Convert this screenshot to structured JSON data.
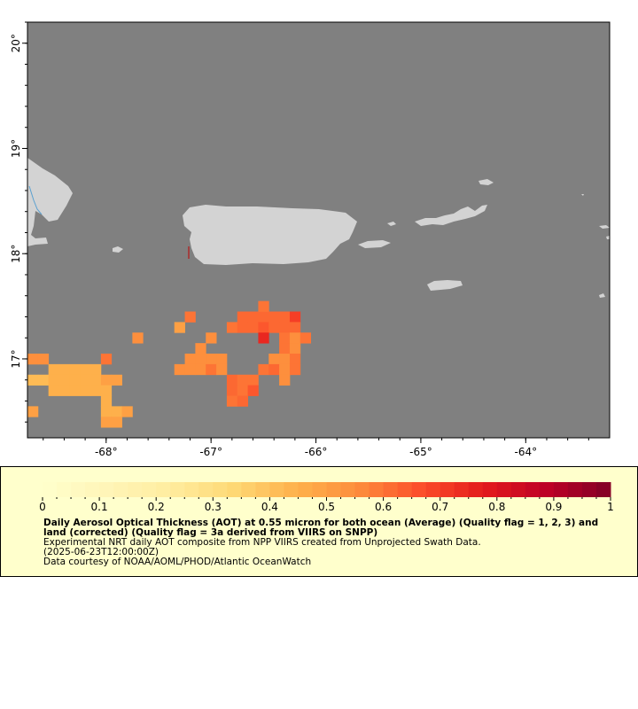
{
  "map": {
    "lon_min": -68.75,
    "lon_max": -63.2,
    "lat_min": 16.25,
    "lat_max": 20.2,
    "water_color": "#808080",
    "land_color": "#d3d3d3",
    "lon_ticks": [
      {
        "value": -68,
        "label": "-68°"
      },
      {
        "value": -67,
        "label": "-67°"
      },
      {
        "value": -66,
        "label": "-66°"
      },
      {
        "value": -65,
        "label": "-65°"
      },
      {
        "value": -64,
        "label": "-64°"
      }
    ],
    "lat_ticks": [
      {
        "value": 17,
        "label": "17°"
      },
      {
        "value": 18,
        "label": "18°"
      },
      {
        "value": 19,
        "label": "19°"
      },
      {
        "value": 20,
        "label": "20°"
      }
    ]
  },
  "chart_data": {
    "type": "heatmap",
    "cell_size_deg": 0.1,
    "variable": "AOT at 0.55 micron",
    "cells": [
      {
        "lon": -68.7,
        "lat": 17.0,
        "v": 0.55
      },
      {
        "lon": -68.6,
        "lat": 17.0,
        "v": 0.55
      },
      {
        "lon": -68.0,
        "lat": 17.0,
        "v": 0.6
      },
      {
        "lon": -68.7,
        "lat": 16.8,
        "v": 0.42
      },
      {
        "lon": -68.6,
        "lat": 16.8,
        "v": 0.42
      },
      {
        "lon": -68.5,
        "lat": 16.9,
        "v": 0.45
      },
      {
        "lon": -68.4,
        "lat": 16.9,
        "v": 0.45
      },
      {
        "lon": -68.3,
        "lat": 16.9,
        "v": 0.45
      },
      {
        "lon": -68.2,
        "lat": 16.9,
        "v": 0.45
      },
      {
        "lon": -68.1,
        "lat": 16.9,
        "v": 0.45
      },
      {
        "lon": -68.5,
        "lat": 16.8,
        "v": 0.45
      },
      {
        "lon": -68.4,
        "lat": 16.8,
        "v": 0.45
      },
      {
        "lon": -68.3,
        "lat": 16.8,
        "v": 0.45
      },
      {
        "lon": -68.2,
        "lat": 16.8,
        "v": 0.45
      },
      {
        "lon": -68.1,
        "lat": 16.8,
        "v": 0.45
      },
      {
        "lon": -68.0,
        "lat": 16.8,
        "v": 0.5
      },
      {
        "lon": -67.9,
        "lat": 16.8,
        "v": 0.5
      },
      {
        "lon": -68.5,
        "lat": 16.7,
        "v": 0.45
      },
      {
        "lon": -68.4,
        "lat": 16.7,
        "v": 0.45
      },
      {
        "lon": -68.3,
        "lat": 16.7,
        "v": 0.45
      },
      {
        "lon": -68.2,
        "lat": 16.7,
        "v": 0.45
      },
      {
        "lon": -68.1,
        "lat": 16.7,
        "v": 0.45
      },
      {
        "lon": -68.0,
        "lat": 16.7,
        "v": 0.45
      },
      {
        "lon": -68.0,
        "lat": 16.6,
        "v": 0.45
      },
      {
        "lon": -68.7,
        "lat": 16.5,
        "v": 0.5
      },
      {
        "lon": -68.0,
        "lat": 16.5,
        "v": 0.45
      },
      {
        "lon": -67.9,
        "lat": 16.5,
        "v": 0.45
      },
      {
        "lon": -67.8,
        "lat": 16.5,
        "v": 0.5
      },
      {
        "lon": -68.0,
        "lat": 16.4,
        "v": 0.5
      },
      {
        "lon": -67.9,
        "lat": 16.4,
        "v": 0.5
      },
      {
        "lon": -67.7,
        "lat": 17.2,
        "v": 0.55
      },
      {
        "lon": -67.3,
        "lat": 17.3,
        "v": 0.5
      },
      {
        "lon": -67.2,
        "lat": 17.4,
        "v": 0.6
      },
      {
        "lon": -67.0,
        "lat": 17.2,
        "v": 0.55
      },
      {
        "lon": -67.1,
        "lat": 17.1,
        "v": 0.55
      },
      {
        "lon": -67.3,
        "lat": 16.9,
        "v": 0.55
      },
      {
        "lon": -67.2,
        "lat": 17.0,
        "v": 0.55
      },
      {
        "lon": -67.1,
        "lat": 17.0,
        "v": 0.55
      },
      {
        "lon": -67.0,
        "lat": 17.0,
        "v": 0.55
      },
      {
        "lon": -66.9,
        "lat": 17.0,
        "v": 0.55
      },
      {
        "lon": -67.2,
        "lat": 16.9,
        "v": 0.55
      },
      {
        "lon": -67.1,
        "lat": 16.9,
        "v": 0.55
      },
      {
        "lon": -67.0,
        "lat": 16.9,
        "v": 0.6
      },
      {
        "lon": -66.9,
        "lat": 16.9,
        "v": 0.55
      },
      {
        "lon": -66.8,
        "lat": 17.3,
        "v": 0.6
      },
      {
        "lon": -66.7,
        "lat": 17.4,
        "v": 0.62
      },
      {
        "lon": -66.6,
        "lat": 17.4,
        "v": 0.62
      },
      {
        "lon": -66.5,
        "lat": 17.4,
        "v": 0.62
      },
      {
        "lon": -66.4,
        "lat": 17.4,
        "v": 0.62
      },
      {
        "lon": -66.3,
        "lat": 17.4,
        "v": 0.62
      },
      {
        "lon": -66.2,
        "lat": 17.4,
        "v": 0.7
      },
      {
        "lon": -66.5,
        "lat": 17.5,
        "v": 0.6
      },
      {
        "lon": -66.7,
        "lat": 17.3,
        "v": 0.62
      },
      {
        "lon": -66.6,
        "lat": 17.3,
        "v": 0.62
      },
      {
        "lon": -66.5,
        "lat": 17.3,
        "v": 0.65
      },
      {
        "lon": -66.4,
        "lat": 17.3,
        "v": 0.62
      },
      {
        "lon": -66.3,
        "lat": 17.3,
        "v": 0.62
      },
      {
        "lon": -66.2,
        "lat": 17.3,
        "v": 0.62
      },
      {
        "lon": -66.5,
        "lat": 17.2,
        "v": 0.75
      },
      {
        "lon": -66.3,
        "lat": 17.2,
        "v": 0.6
      },
      {
        "lon": -66.2,
        "lat": 17.2,
        "v": 0.55
      },
      {
        "lon": -66.1,
        "lat": 17.2,
        "v": 0.6
      },
      {
        "lon": -66.3,
        "lat": 17.1,
        "v": 0.6
      },
      {
        "lon": -66.2,
        "lat": 17.1,
        "v": 0.55
      },
      {
        "lon": -66.4,
        "lat": 17.0,
        "v": 0.55
      },
      {
        "lon": -66.3,
        "lat": 17.0,
        "v": 0.55
      },
      {
        "lon": -66.2,
        "lat": 17.0,
        "v": 0.6
      },
      {
        "lon": -66.5,
        "lat": 16.9,
        "v": 0.6
      },
      {
        "lon": -66.4,
        "lat": 16.9,
        "v": 0.62
      },
      {
        "lon": -66.3,
        "lat": 16.9,
        "v": 0.55
      },
      {
        "lon": -66.2,
        "lat": 16.9,
        "v": 0.6
      },
      {
        "lon": -66.3,
        "lat": 16.8,
        "v": 0.55
      },
      {
        "lon": -66.8,
        "lat": 16.8,
        "v": 0.62
      },
      {
        "lon": -66.7,
        "lat": 16.8,
        "v": 0.6
      },
      {
        "lon": -66.6,
        "lat": 16.8,
        "v": 0.6
      },
      {
        "lon": -66.8,
        "lat": 16.7,
        "v": 0.62
      },
      {
        "lon": -66.7,
        "lat": 16.7,
        "v": 0.6
      },
      {
        "lon": -66.6,
        "lat": 16.7,
        "v": 0.65
      },
      {
        "lon": -66.8,
        "lat": 16.6,
        "v": 0.6
      },
      {
        "lon": -66.7,
        "lat": 16.6,
        "v": 0.62
      }
    ]
  },
  "legend": {
    "tick_labels": [
      "0",
      "0.1",
      "0.2",
      "0.3",
      "0.4",
      "0.5",
      "0.6",
      "0.7",
      "0.8",
      "0.9",
      "1"
    ],
    "colors": [
      "#ffffcc",
      "#fff5b8",
      "#ffeda0",
      "#fed976",
      "#feb24c",
      "#fd8d3c",
      "#fc4e2a",
      "#e31a1c",
      "#bd0026",
      "#800026"
    ],
    "title": "Daily Aerosol Optical Thickness (AOT) at 0.55 micron for both ocean (Average) (Quality flag = 1, 2, 3) and land (corrected) (Quality flag = 3a derived from VIIRS on SNPP)",
    "line2": "Experimental NRT daily AOT composite from NPP VIIRS created from Unprojected Swath Data.",
    "line3": "(2025-06-23T12:00:00Z)",
    "line4": "Data courtesy of NOAA/AOML/PHOD/Atlantic OceanWatch"
  }
}
